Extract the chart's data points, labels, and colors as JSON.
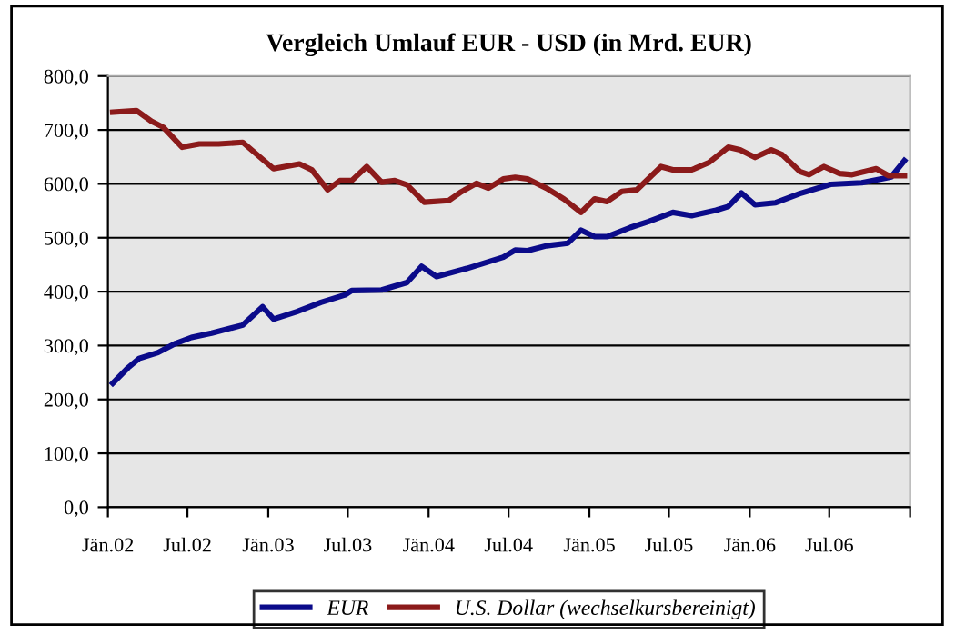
{
  "chart_data": {
    "type": "line",
    "title": "Vergleich Umlauf EUR - USD (in Mrd. EUR)",
    "xlim": [
      "2002-01-01",
      "2007-01-01"
    ],
    "xticks": [
      {
        "value": "2002-01-01",
        "label": "Jän.02"
      },
      {
        "value": "2002-07-01",
        "label": "Jul.02"
      },
      {
        "value": "2003-01-01",
        "label": "Jän.03"
      },
      {
        "value": "2003-07-01",
        "label": "Jul.03"
      },
      {
        "value": "2004-01-01",
        "label": "Jän.04"
      },
      {
        "value": "2004-07-01",
        "label": "Jul.04"
      },
      {
        "value": "2005-01-01",
        "label": "Jän.05"
      },
      {
        "value": "2005-07-01",
        "label": "Jul.05"
      },
      {
        "value": "2006-01-01",
        "label": "Jän.06"
      },
      {
        "value": "2006-07-01",
        "label": "Jul.06"
      },
      {
        "value": "2007-01-01",
        "label": null
      }
    ],
    "ylim": [
      0,
      800
    ],
    "yticks": [
      {
        "value": 0,
        "label": "0,0"
      },
      {
        "value": 100,
        "label": "100,0"
      },
      {
        "value": 200,
        "label": "200,0"
      },
      {
        "value": 300,
        "label": "300,0"
      },
      {
        "value": 400,
        "label": "400,0"
      },
      {
        "value": 500,
        "label": "500,0"
      },
      {
        "value": 600,
        "label": "600,0"
      },
      {
        "value": 700,
        "label": "700,0"
      },
      {
        "value": 800,
        "label": "800,0"
      }
    ],
    "grid": "y",
    "legend": "bottom",
    "marker": "none",
    "line_style": "solid",
    "series": [
      {
        "name": "EUR",
        "color": "#0b0b8a",
        "x": [
          "2002-01-12",
          "2002-02-16",
          "2002-03-13",
          "2002-04-25",
          "2002-06-04",
          "2002-07-10",
          "2002-08-25",
          "2002-11-04",
          "2002-12-19",
          "2003-01-13",
          "2003-03-07",
          "2003-05-01",
          "2003-06-25",
          "2003-07-10",
          "2003-09-16",
          "2003-11-13",
          "2003-12-16",
          "2004-01-19",
          "2004-03-28",
          "2004-06-19",
          "2004-07-16",
          "2004-08-13",
          "2004-09-25",
          "2004-11-13",
          "2004-12-13",
          "2005-01-13",
          "2005-02-10",
          "2005-04-04",
          "2005-05-16",
          "2005-07-10",
          "2005-08-22",
          "2005-10-16",
          "2005-11-13",
          "2005-12-13",
          "2006-01-13",
          "2006-03-01",
          "2006-04-25",
          "2006-07-04",
          "2006-09-13",
          "2006-11-07",
          "2006-11-19",
          "2006-12-19"
        ],
        "values": [
          230,
          259,
          276,
          287,
          304,
          315,
          323,
          338,
          372,
          349,
          363,
          380,
          394,
          402,
          403,
          417,
          447,
          428,
          443,
          464,
          477,
          476,
          485,
          490,
          514,
          502,
          502,
          519,
          530,
          547,
          541,
          551,
          558,
          583,
          561,
          565,
          582,
          599,
          602,
          611,
          613,
          643
        ]
      },
      {
        "name": "U.S. Dollar (wechselkursbereinigt)",
        "color": "#8b1a1a",
        "x": [
          "2002-01-12",
          "2002-03-07",
          "2002-04-10",
          "2002-05-07",
          "2002-06-19",
          "2002-07-28",
          "2002-09-10",
          "2002-11-04",
          "2003-01-13",
          "2003-03-13",
          "2003-04-10",
          "2003-05-16",
          "2003-06-13",
          "2003-07-10",
          "2003-08-13",
          "2003-09-16",
          "2003-10-16",
          "2003-11-13",
          "2003-12-22",
          "2004-02-16",
          "2004-03-13",
          "2004-04-19",
          "2004-05-16",
          "2004-06-19",
          "2004-07-16",
          "2004-08-13",
          "2004-09-25",
          "2004-11-04",
          "2004-12-13",
          "2005-01-13",
          "2005-02-10",
          "2005-03-16",
          "2005-04-19",
          "2005-06-13",
          "2005-07-10",
          "2005-08-22",
          "2005-10-01",
          "2005-11-13",
          "2005-12-10",
          "2006-01-13",
          "2006-02-19",
          "2006-03-16",
          "2006-04-25",
          "2006-05-16",
          "2006-06-19",
          "2006-07-25",
          "2006-08-22",
          "2006-10-16",
          "2006-11-13",
          "2006-12-19"
        ],
        "values": [
          733,
          736,
          716,
          705,
          668,
          674,
          674,
          677,
          628,
          637,
          626,
          589,
          606,
          606,
          632,
          603,
          606,
          598,
          566,
          569,
          584,
          601,
          592,
          609,
          612,
          609,
          592,
          572,
          547,
          572,
          567,
          586,
          589,
          632,
          626,
          626,
          640,
          668,
          663,
          649,
          663,
          654,
          623,
          617,
          632,
          619,
          617,
          628,
          615,
          615
        ]
      }
    ]
  }
}
